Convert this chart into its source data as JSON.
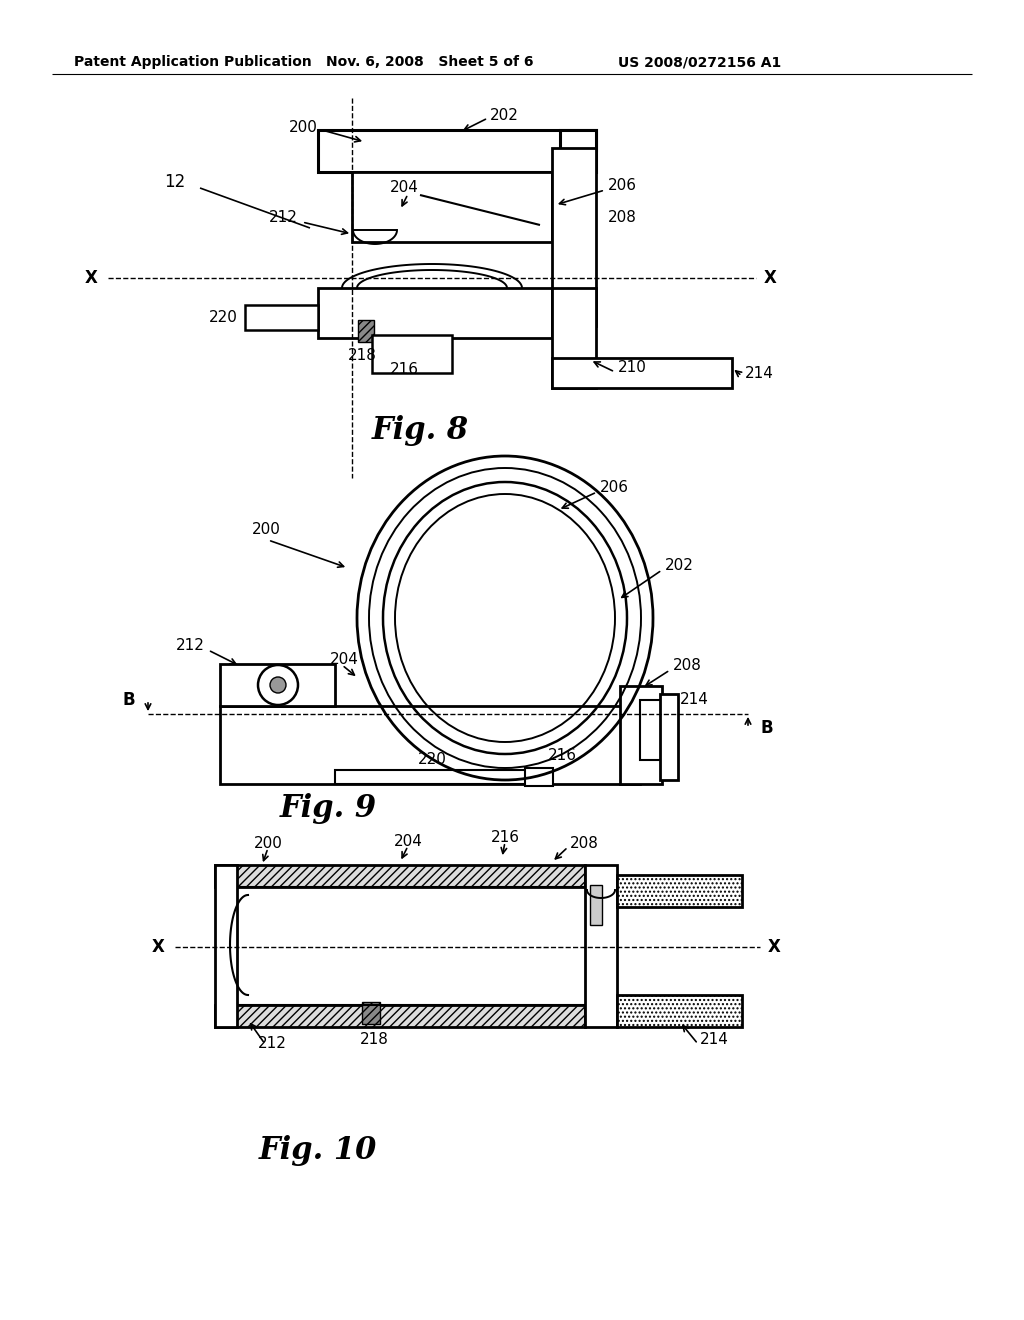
{
  "bg": "#ffffff",
  "lc": "#000000",
  "fig8_label": "Fig. 8",
  "fig9_label": "Fig. 9",
  "fig10_label": "Fig. 10",
  "header_left": "Patent Application Publication",
  "header_mid": "Nov. 6, 2008   Sheet 5 of 6",
  "header_right": "US 2008/0272156 A1"
}
